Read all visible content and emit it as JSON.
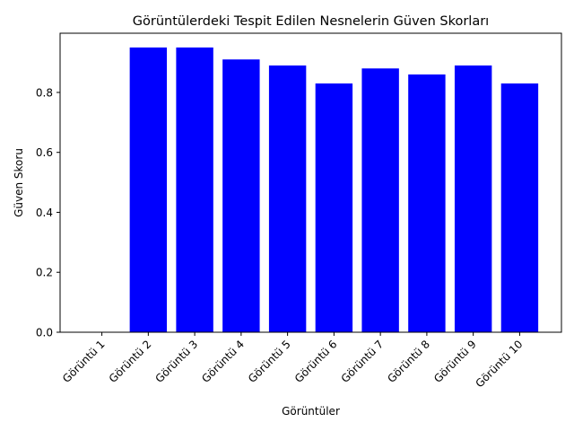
{
  "chart_data": {
    "type": "bar",
    "title": "Görüntülerdeki Tespit Edilen Nesnelerin Güven Skorları",
    "xlabel": "Görüntüler",
    "ylabel": "Güven Skoru",
    "categories": [
      "Görüntü 1",
      "Görüntü 2",
      "Görüntü 3",
      "Görüntü 4",
      "Görüntü 5",
      "Görüntü 6",
      "Görüntü 7",
      "Görüntü 8",
      "Görüntü 9",
      "Görüntü 10"
    ],
    "values": [
      0.0,
      0.95,
      0.95,
      0.91,
      0.89,
      0.83,
      0.88,
      0.86,
      0.89,
      0.83
    ],
    "ylim": [
      0,
      0.9975
    ],
    "yticks": [
      0.0,
      0.2,
      0.4,
      0.6,
      0.8
    ],
    "ytick_labels": [
      "0.0",
      "0.2",
      "0.4",
      "0.6",
      "0.8"
    ],
    "bar_color": "#0000ff",
    "grid": false,
    "legend": "none"
  }
}
